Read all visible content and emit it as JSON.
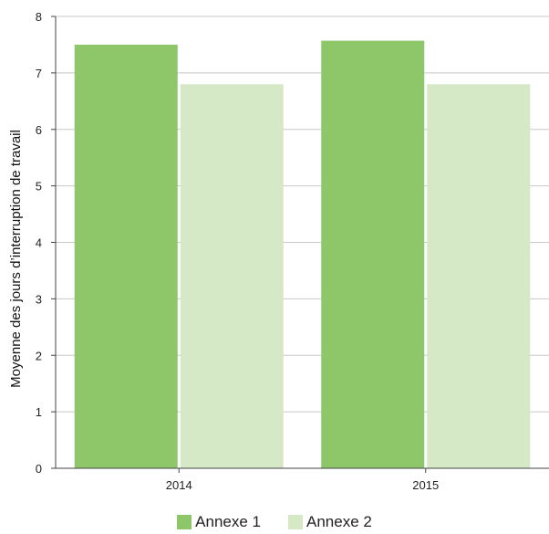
{
  "chart_data": {
    "type": "bar",
    "categories": [
      "2014",
      "2015"
    ],
    "series": [
      {
        "name": "Annexe 1",
        "values": [
          7.5,
          7.57
        ],
        "color": "#8dc76a"
      },
      {
        "name": "Annexe 2",
        "values": [
          6.8,
          6.8
        ],
        "color": "#d5e9c7"
      }
    ],
    "ylabel": "Moyenne des jours d’interruption de travail",
    "xlabel": "",
    "ylim": [
      0,
      8
    ],
    "yticks": [
      0,
      1,
      2,
      3,
      4,
      5,
      6,
      7,
      8
    ],
    "grid": true,
    "legend_position": "bottom"
  }
}
